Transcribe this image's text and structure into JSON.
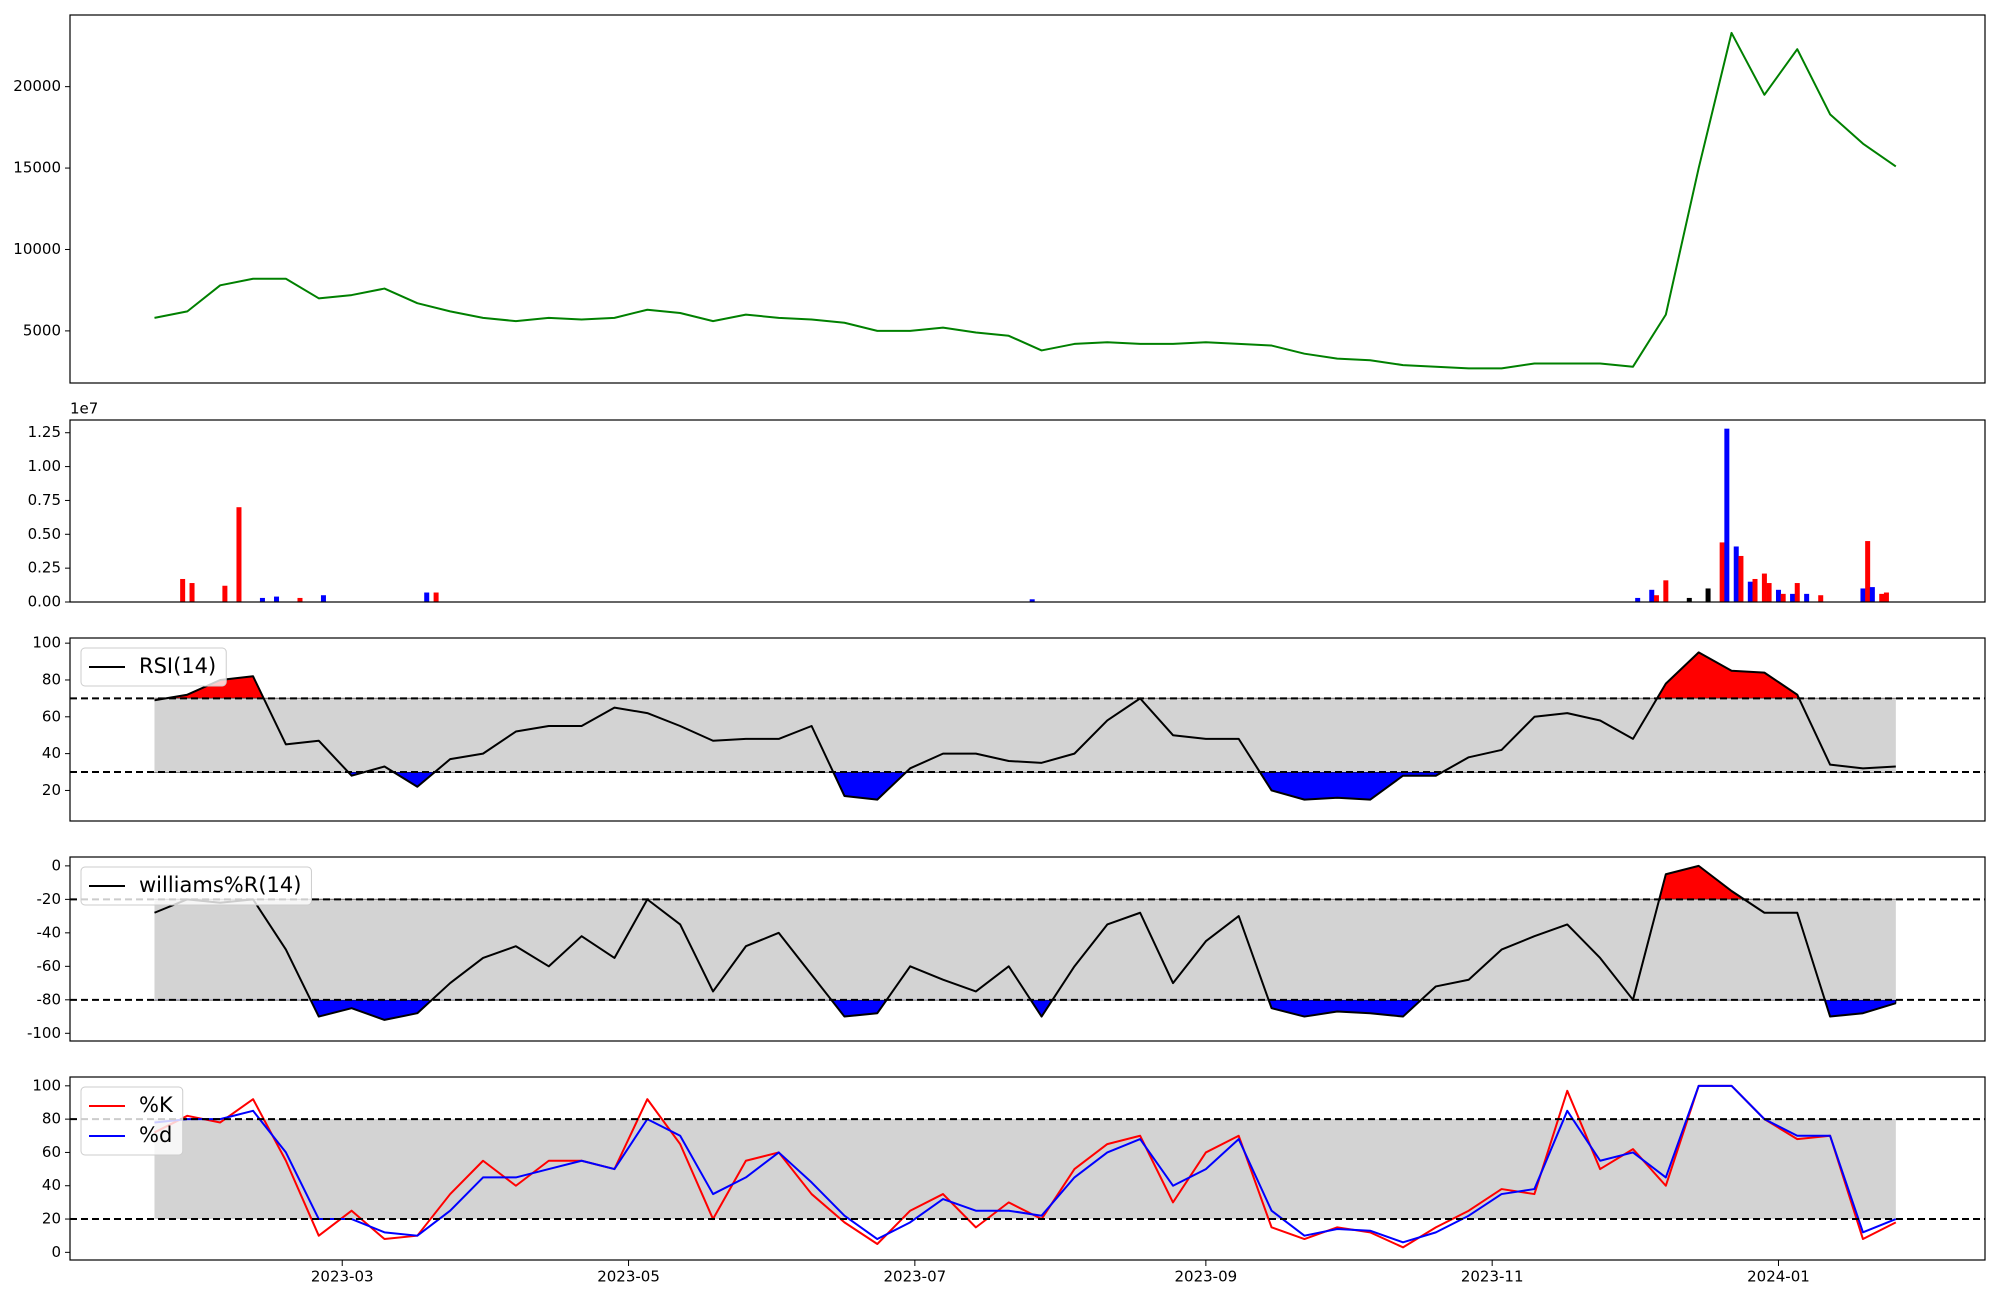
{
  "chart_data": [
    {
      "type": "line",
      "x": [
        "2023-01-20",
        "2023-01-27",
        "2023-02-03",
        "2023-02-10",
        "2023-02-17",
        "2023-02-24",
        "2023-03-03",
        "2023-03-10",
        "2023-03-17",
        "2023-03-24",
        "2023-03-31",
        "2023-04-07",
        "2023-04-14",
        "2023-04-21",
        "2023-04-28",
        "2023-05-05",
        "2023-05-12",
        "2023-05-19",
        "2023-05-26",
        "2023-06-02",
        "2023-06-09",
        "2023-06-16",
        "2023-06-23",
        "2023-06-30",
        "2023-07-07",
        "2023-07-14",
        "2023-07-21",
        "2023-07-28",
        "2023-08-04",
        "2023-08-11",
        "2023-08-18",
        "2023-08-25",
        "2023-09-01",
        "2023-09-08",
        "2023-09-15",
        "2023-09-22",
        "2023-09-29",
        "2023-10-06",
        "2023-10-13",
        "2023-10-20",
        "2023-10-27",
        "2023-11-03",
        "2023-11-10",
        "2023-11-17",
        "2023-11-24",
        "2023-12-01",
        "2023-12-08",
        "2023-12-15",
        "2023-12-22",
        "2023-12-29",
        "2024-01-05",
        "2024-01-12",
        "2024-01-19",
        "2024-01-26"
      ],
      "values": [
        5800,
        6200,
        7800,
        8200,
        8200,
        7000,
        7200,
        7600,
        6700,
        6200,
        5800,
        5600,
        5800,
        5700,
        5800,
        6300,
        6100,
        5600,
        6000,
        5800,
        5700,
        5500,
        5000,
        5000,
        5200,
        4900,
        4700,
        3800,
        4200,
        4300,
        4200,
        4200,
        4300,
        4200,
        4100,
        3600,
        3300,
        3200,
        2900,
        2800,
        2700,
        2700,
        3000,
        3000,
        3000,
        2800,
        6000,
        15000,
        23300,
        19500,
        22300,
        18300,
        16500,
        15100
      ],
      "color": "#008000",
      "xlim": [
        "2023-01-02",
        "2024-02-14"
      ],
      "ylim": [
        1800,
        24400
      ],
      "yticks": [
        5000,
        10000,
        15000,
        20000
      ]
    },
    {
      "type": "bar",
      "x": [
        "2023-01-26",
        "2023-01-28",
        "2023-02-04",
        "2023-02-07",
        "2023-02-12",
        "2023-02-15",
        "2023-02-20",
        "2023-02-25",
        "2023-03-19",
        "2023-03-21",
        "2023-07-26",
        "2023-12-02",
        "2023-12-05",
        "2023-12-06",
        "2023-12-08",
        "2023-12-13",
        "2023-12-17",
        "2023-12-20",
        "2023-12-21",
        "2023-12-23",
        "2023-12-24",
        "2023-12-26",
        "2023-12-27",
        "2023-12-29",
        "2023-12-30",
        "2024-01-01",
        "2024-01-02",
        "2024-01-04",
        "2024-01-05",
        "2024-01-07",
        "2024-01-10",
        "2024-01-19",
        "2024-01-20",
        "2024-01-21",
        "2024-01-23",
        "2024-01-24"
      ],
      "values": [
        1700000,
        1400000,
        1200000,
        7000000,
        300000,
        400000,
        300000,
        500000,
        700000,
        700000,
        200000,
        300000,
        900000,
        500000,
        1600000,
        300000,
        1000000,
        4400000,
        12800000,
        4100000,
        3400000,
        1500000,
        1700000,
        2100000,
        1400000,
        900000,
        600000,
        600000,
        1400000,
        600000,
        500000,
        1000000,
        4500000,
        1100000,
        600000,
        700000
      ],
      "colors": [
        "#ff0000",
        "#ff0000",
        "#ff0000",
        "#ff0000",
        "#0000ff",
        "#0000ff",
        "#ff0000",
        "#0000ff",
        "#0000ff",
        "#ff0000",
        "#0000ff",
        "#0000ff",
        "#0000ff",
        "#ff0000",
        "#ff0000",
        "#000000",
        "#000000",
        "#ff0000",
        "#0000ff",
        "#0000ff",
        "#ff0000",
        "#0000ff",
        "#ff0000",
        "#ff0000",
        "#ff0000",
        "#0000ff",
        "#ff0000",
        "#0000ff",
        "#ff0000",
        "#0000ff",
        "#ff0000",
        "#0000ff",
        "#ff0000",
        "#0000ff",
        "#ff0000",
        "#ff0000"
      ],
      "offset_label": "1e7",
      "xlim": [
        "2023-01-02",
        "2024-02-14"
      ],
      "ylim": [
        0,
        13440000
      ],
      "yticks": [
        {
          "value": 0,
          "label": "0.00"
        },
        {
          "value": 2500000,
          "label": "0.25"
        },
        {
          "value": 5000000,
          "label": "0.50"
        },
        {
          "value": 7500000,
          "label": "0.75"
        },
        {
          "value": 10000000,
          "label": "1.00"
        },
        {
          "value": 12500000,
          "label": "1.25"
        }
      ]
    },
    {
      "type": "line",
      "x": [
        "2023-01-20",
        "2023-01-27",
        "2023-02-03",
        "2023-02-10",
        "2023-02-17",
        "2023-02-24",
        "2023-03-03",
        "2023-03-10",
        "2023-03-17",
        "2023-03-24",
        "2023-03-31",
        "2023-04-07",
        "2023-04-14",
        "2023-04-21",
        "2023-04-28",
        "2023-05-05",
        "2023-05-12",
        "2023-05-19",
        "2023-05-26",
        "2023-06-02",
        "2023-06-09",
        "2023-06-16",
        "2023-06-23",
        "2023-06-30",
        "2023-07-07",
        "2023-07-14",
        "2023-07-21",
        "2023-07-28",
        "2023-08-04",
        "2023-08-11",
        "2023-08-18",
        "2023-08-25",
        "2023-09-01",
        "2023-09-08",
        "2023-09-15",
        "2023-09-22",
        "2023-09-29",
        "2023-10-06",
        "2023-10-13",
        "2023-10-20",
        "2023-10-27",
        "2023-11-03",
        "2023-11-10",
        "2023-11-17",
        "2023-11-24",
        "2023-12-01",
        "2023-12-08",
        "2023-12-15",
        "2023-12-22",
        "2023-12-29",
        "2024-01-05",
        "2024-01-12",
        "2024-01-19",
        "2024-01-26"
      ],
      "series": [
        {
          "name": "RSI(14)",
          "color": "#000000",
          "values": [
            69,
            72,
            80,
            82,
            45,
            47,
            28,
            33,
            22,
            37,
            40,
            52,
            55,
            55,
            65,
            62,
            55,
            47,
            48,
            48,
            55,
            17,
            15,
            32,
            40,
            40,
            36,
            35,
            40,
            58,
            70,
            50,
            48,
            48,
            20,
            15,
            16,
            15,
            28,
            28,
            38,
            42,
            60,
            62,
            58,
            48,
            78,
            95,
            85,
            84,
            72,
            34,
            32,
            33
          ]
        }
      ],
      "levels": [
        30,
        70
      ],
      "fill_colors": {
        "above": "#ff0000",
        "below": "#0000ff",
        "band": "#d3d3d3"
      },
      "legend": "upper left",
      "xlim": [
        "2023-01-02",
        "2024-02-14"
      ],
      "ylim": [
        3.4,
        102.8
      ],
      "yticks": [
        20,
        40,
        60,
        80,
        100
      ]
    },
    {
      "type": "line",
      "x": [
        "2023-01-20",
        "2023-01-27",
        "2023-02-03",
        "2023-02-10",
        "2023-02-17",
        "2023-02-24",
        "2023-03-03",
        "2023-03-10",
        "2023-03-17",
        "2023-03-24",
        "2023-03-31",
        "2023-04-07",
        "2023-04-14",
        "2023-04-21",
        "2023-04-28",
        "2023-05-05",
        "2023-05-12",
        "2023-05-19",
        "2023-05-26",
        "2023-06-02",
        "2023-06-09",
        "2023-06-16",
        "2023-06-23",
        "2023-06-30",
        "2023-07-07",
        "2023-07-14",
        "2023-07-21",
        "2023-07-28",
        "2023-08-04",
        "2023-08-11",
        "2023-08-18",
        "2023-08-25",
        "2023-09-01",
        "2023-09-08",
        "2023-09-15",
        "2023-09-22",
        "2023-09-29",
        "2023-10-06",
        "2023-10-13",
        "2023-10-20",
        "2023-10-27",
        "2023-11-03",
        "2023-11-10",
        "2023-11-17",
        "2023-11-24",
        "2023-12-01",
        "2023-12-08",
        "2023-12-15",
        "2023-12-22",
        "2023-12-29",
        "2024-01-05",
        "2024-01-12",
        "2024-01-19",
        "2024-01-26"
      ],
      "series": [
        {
          "name": "williams%R(14)",
          "color": "#000000",
          "values": [
            -28,
            -20,
            -22,
            -20,
            -50,
            -90,
            -85,
            -92,
            -88,
            -70,
            -55,
            -48,
            -60,
            -42,
            -55,
            -20,
            -35,
            -75,
            -48,
            -40,
            -65,
            -90,
            -88,
            -60,
            -68,
            -75,
            -60,
            -90,
            -60,
            -35,
            -28,
            -70,
            -45,
            -30,
            -85,
            -90,
            -87,
            -88,
            -90,
            -72,
            -68,
            -50,
            -42,
            -35,
            -55,
            -80,
            -5,
            0,
            -15,
            -28,
            -28,
            -90,
            -88,
            -82
          ]
        }
      ],
      "levels": [
        -80,
        -20
      ],
      "fill_colors": {
        "above": "#ff0000",
        "below": "#0000ff",
        "band": "#d3d3d3"
      },
      "legend": "upper left",
      "xlim": [
        "2023-01-02",
        "2024-02-14"
      ],
      "ylim": [
        -104.6,
        5.3
      ],
      "yticks": [
        -100,
        -80,
        -60,
        -40,
        -20,
        0
      ]
    },
    {
      "type": "line",
      "x": [
        "2023-01-20",
        "2023-01-27",
        "2023-02-03",
        "2023-02-10",
        "2023-02-17",
        "2023-02-24",
        "2023-03-03",
        "2023-03-10",
        "2023-03-17",
        "2023-03-24",
        "2023-03-31",
        "2023-04-07",
        "2023-04-14",
        "2023-04-21",
        "2023-04-28",
        "2023-05-05",
        "2023-05-12",
        "2023-05-19",
        "2023-05-26",
        "2023-06-02",
        "2023-06-09",
        "2023-06-16",
        "2023-06-23",
        "2023-06-30",
        "2023-07-07",
        "2023-07-14",
        "2023-07-21",
        "2023-07-28",
        "2023-08-04",
        "2023-08-11",
        "2023-08-18",
        "2023-08-25",
        "2023-09-01",
        "2023-09-08",
        "2023-09-15",
        "2023-09-22",
        "2023-09-29",
        "2023-10-06",
        "2023-10-13",
        "2023-10-20",
        "2023-10-27",
        "2023-11-03",
        "2023-11-10",
        "2023-11-17",
        "2023-11-24",
        "2023-12-01",
        "2023-12-08",
        "2023-12-15",
        "2023-12-22",
        "2023-12-29",
        "2024-01-05",
        "2024-01-12",
        "2024-01-19",
        "2024-01-26"
      ],
      "series": [
        {
          "name": "%K",
          "color": "#ff0000",
          "values": [
            72,
            82,
            78,
            92,
            55,
            10,
            25,
            8,
            10,
            35,
            55,
            40,
            55,
            55,
            50,
            92,
            65,
            20,
            55,
            60,
            35,
            18,
            5,
            25,
            35,
            15,
            30,
            20,
            50,
            65,
            70,
            30,
            60,
            70,
            15,
            8,
            15,
            12,
            3,
            15,
            25,
            38,
            35,
            97,
            50,
            62,
            40,
            100,
            100,
            80,
            68,
            70,
            8,
            18
          ]
        },
        {
          "name": "%d",
          "color": "#0000ff",
          "values": [
            78,
            80,
            80,
            85,
            60,
            20,
            20,
            12,
            10,
            25,
            45,
            45,
            50,
            55,
            50,
            80,
            70,
            35,
            45,
            60,
            42,
            22,
            8,
            18,
            32,
            25,
            25,
            22,
            45,
            60,
            68,
            40,
            50,
            68,
            25,
            10,
            14,
            13,
            6,
            12,
            22,
            35,
            38,
            85,
            55,
            60,
            45,
            100,
            100,
            80,
            70,
            70,
            12,
            20
          ]
        }
      ],
      "levels": [
        20,
        80
      ],
      "fill_colors": {
        "band": "#d3d3d3"
      },
      "legend": "upper left",
      "xlim": [
        "2023-01-02",
        "2024-02-14"
      ],
      "ylim": [
        -4.6,
        105.3
      ],
      "yticks": [
        0,
        20,
        40,
        60,
        80,
        100
      ],
      "xticks": [
        "2023-03",
        "2023-05",
        "2023-07",
        "2023-09",
        "2023-11",
        "2024-01"
      ]
    }
  ]
}
